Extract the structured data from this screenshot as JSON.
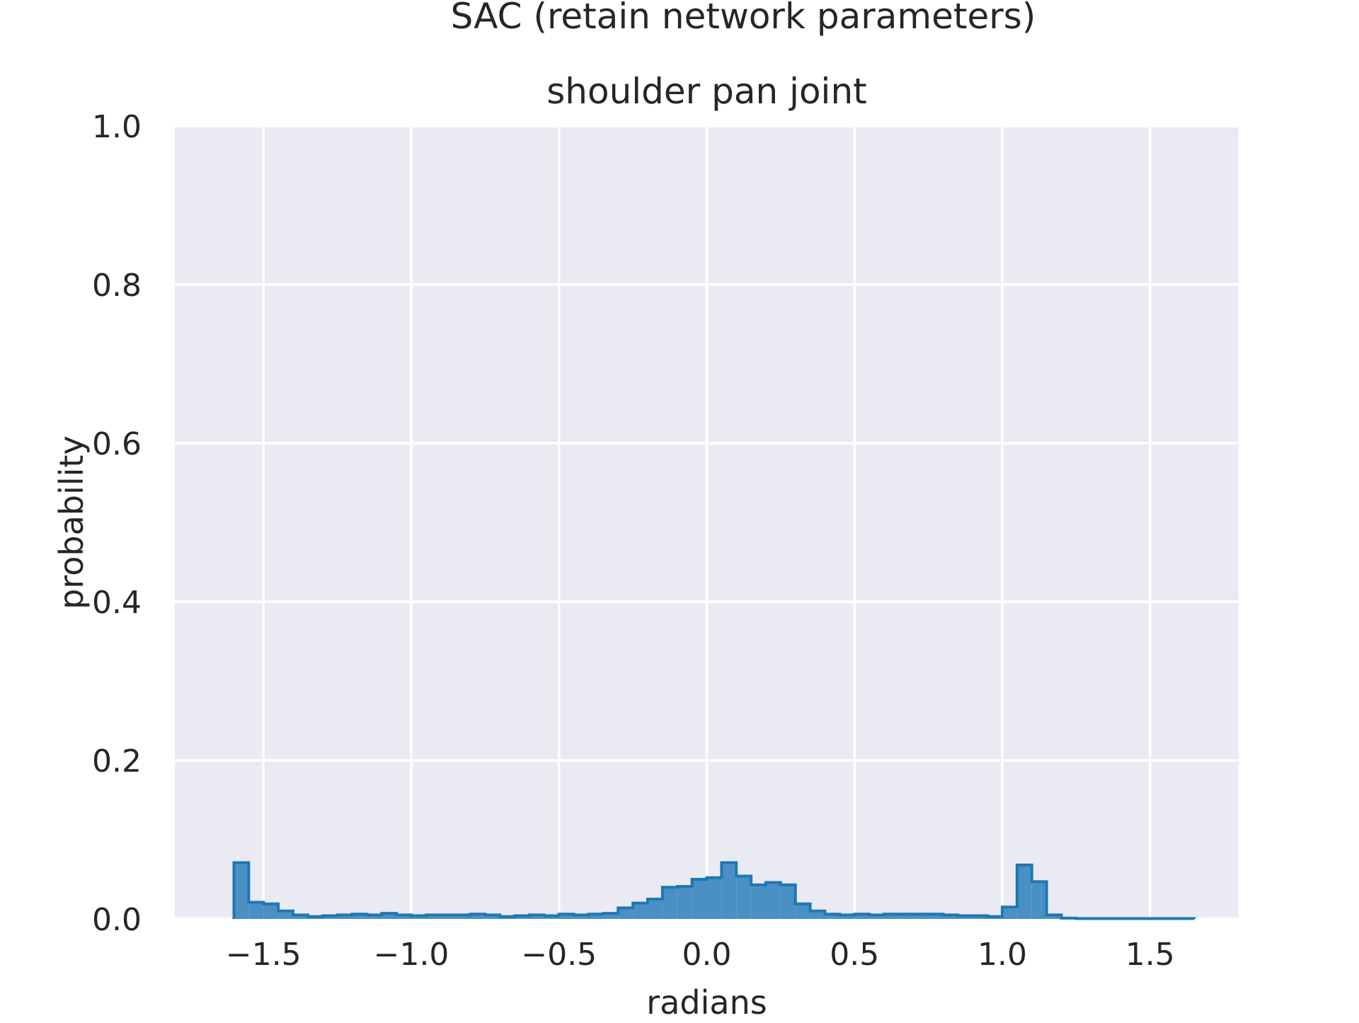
{
  "figure": {
    "suptitle": "SAC (retain network parameters)"
  },
  "chart_data": {
    "type": "histogram",
    "title": "shoulder pan joint",
    "xlabel": "radians",
    "ylabel": "probability",
    "xlim": [
      -1.8,
      1.8
    ],
    "ylim": [
      0.0,
      1.0
    ],
    "xticks": [
      -1.5,
      -1.0,
      -0.5,
      0.0,
      0.5,
      1.0,
      1.5
    ],
    "xtick_labels": [
      "−1.5",
      "−1.0",
      "−0.5",
      "0.0",
      "0.5",
      "1.0",
      "1.5"
    ],
    "yticks": [
      0.0,
      0.2,
      0.4,
      0.6,
      0.8,
      1.0
    ],
    "ytick_labels": [
      "0.0",
      "0.2",
      "0.4",
      "0.6",
      "0.8",
      "1.0"
    ],
    "grid": true,
    "bin_edges": [
      -1.6,
      -1.55,
      -1.5,
      -1.45,
      -1.4,
      -1.35,
      -1.3,
      -1.25,
      -1.2,
      -1.15,
      -1.1,
      -1.05,
      -1.0,
      -0.95,
      -0.9,
      -0.85,
      -0.8,
      -0.75,
      -0.7,
      -0.65,
      -0.6,
      -0.55,
      -0.5,
      -0.45,
      -0.4,
      -0.35,
      -0.3,
      -0.25,
      -0.2,
      -0.15,
      -0.1,
      -0.05,
      0.0,
      0.05,
      0.1,
      0.15,
      0.2,
      0.25,
      0.3,
      0.35,
      0.4,
      0.45,
      0.5,
      0.55,
      0.6,
      0.65,
      0.7,
      0.75,
      0.8,
      0.85,
      0.9,
      0.95,
      1.0,
      1.05,
      1.1,
      1.15,
      1.2,
      1.25,
      1.3,
      1.35,
      1.4,
      1.45,
      1.5,
      1.55,
      1.6,
      1.65
    ],
    "values": [
      0.071,
      0.021,
      0.019,
      0.01,
      0.005,
      0.003,
      0.004,
      0.005,
      0.006,
      0.005,
      0.007,
      0.005,
      0.004,
      0.005,
      0.005,
      0.005,
      0.006,
      0.005,
      0.003,
      0.004,
      0.005,
      0.004,
      0.006,
      0.005,
      0.006,
      0.007,
      0.014,
      0.02,
      0.025,
      0.04,
      0.041,
      0.05,
      0.052,
      0.071,
      0.054,
      0.043,
      0.046,
      0.043,
      0.019,
      0.01,
      0.006,
      0.005,
      0.006,
      0.005,
      0.006,
      0.006,
      0.006,
      0.006,
      0.005,
      0.004,
      0.004,
      0.003,
      0.015,
      0.068,
      0.047,
      0.005,
      0.001,
      0.0005,
      0.0005,
      0.0005,
      0.0005,
      0.0005,
      0.0005,
      0.0005,
      0.0005
    ],
    "series_color": "#1f77b4",
    "fill_color": "#4a90c4",
    "axes_background": "#eaeaf2",
    "grid_color": "#ffffff"
  }
}
